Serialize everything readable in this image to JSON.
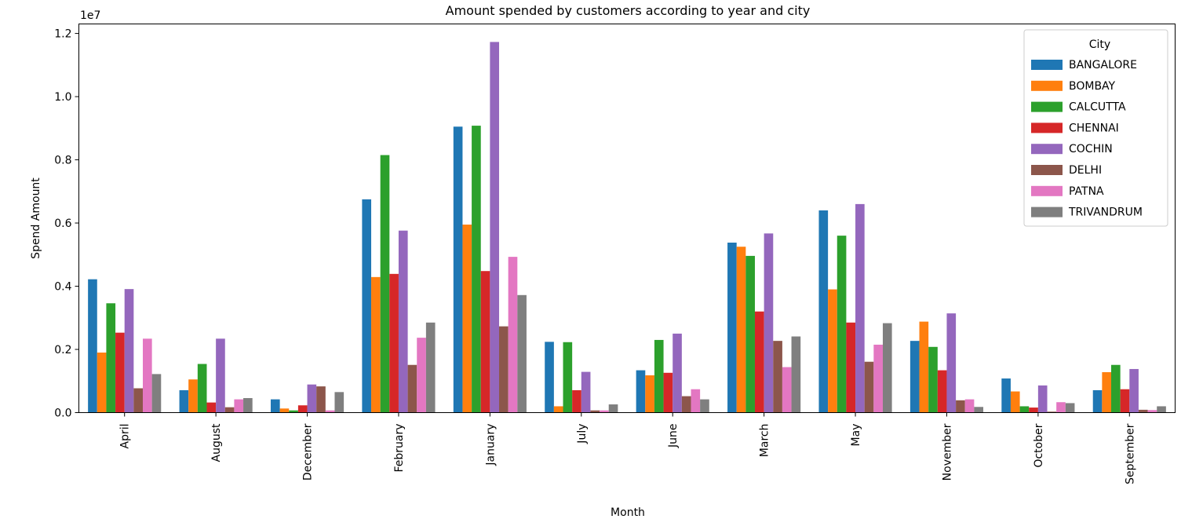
{
  "chart_data": {
    "type": "bar",
    "title": "Amount spended by customers according to year and city",
    "xlabel": "Month",
    "ylabel": "Spend Amount",
    "y_offset_label": "1e7",
    "ylim": [
      0,
      12300000
    ],
    "yticks": [
      0,
      2000000,
      4000000,
      6000000,
      8000000,
      10000000,
      12000000
    ],
    "ytick_labels": [
      "0.0",
      "0.2",
      "0.4",
      "0.6",
      "0.8",
      "1.0",
      "1.2"
    ],
    "grid": false,
    "legend_position": "top-right",
    "legend_title": "City",
    "categories": [
      "April",
      "August",
      "December",
      "February",
      "January",
      "July",
      "June",
      "March",
      "May",
      "November",
      "October",
      "September"
    ],
    "series": [
      {
        "name": "BANGALORE",
        "color": "#1f77b4",
        "values": [
          4220000,
          710000,
          420000,
          6750000,
          9050000,
          2240000,
          1340000,
          5380000,
          6400000,
          2270000,
          1080000,
          710000
        ]
      },
      {
        "name": "BOMBAY",
        "color": "#ff7f0e",
        "values": [
          1900000,
          1050000,
          130000,
          4290000,
          5950000,
          200000,
          1180000,
          5250000,
          3900000,
          2880000,
          670000,
          1280000
        ]
      },
      {
        "name": "CALCUTTA",
        "color": "#2ca02c",
        "values": [
          3460000,
          1540000,
          70000,
          8150000,
          9080000,
          2230000,
          2300000,
          4960000,
          5600000,
          2080000,
          200000,
          1510000
        ]
      },
      {
        "name": "CHENNAI",
        "color": "#d62728",
        "values": [
          2530000,
          320000,
          230000,
          4390000,
          4480000,
          710000,
          1260000,
          3200000,
          2850000,
          1340000,
          160000,
          740000
        ]
      },
      {
        "name": "COCHIN",
        "color": "#9467bd",
        "values": [
          3910000,
          2340000,
          890000,
          5760000,
          11730000,
          1290000,
          2500000,
          5670000,
          6600000,
          3140000,
          860000,
          1380000
        ]
      },
      {
        "name": "DELHI",
        "color": "#8c564b",
        "values": [
          770000,
          170000,
          830000,
          1510000,
          2730000,
          70000,
          520000,
          2270000,
          1610000,
          390000,
          30000,
          90000
        ]
      },
      {
        "name": "PATNA",
        "color": "#e377c2",
        "values": [
          2340000,
          420000,
          70000,
          2370000,
          4930000,
          70000,
          740000,
          1440000,
          2150000,
          420000,
          330000,
          80000
        ]
      },
      {
        "name": "TRIVANDRUM",
        "color": "#7f7f7f",
        "values": [
          1220000,
          460000,
          650000,
          2850000,
          3720000,
          260000,
          420000,
          2410000,
          2830000,
          180000,
          300000,
          200000
        ]
      }
    ]
  }
}
